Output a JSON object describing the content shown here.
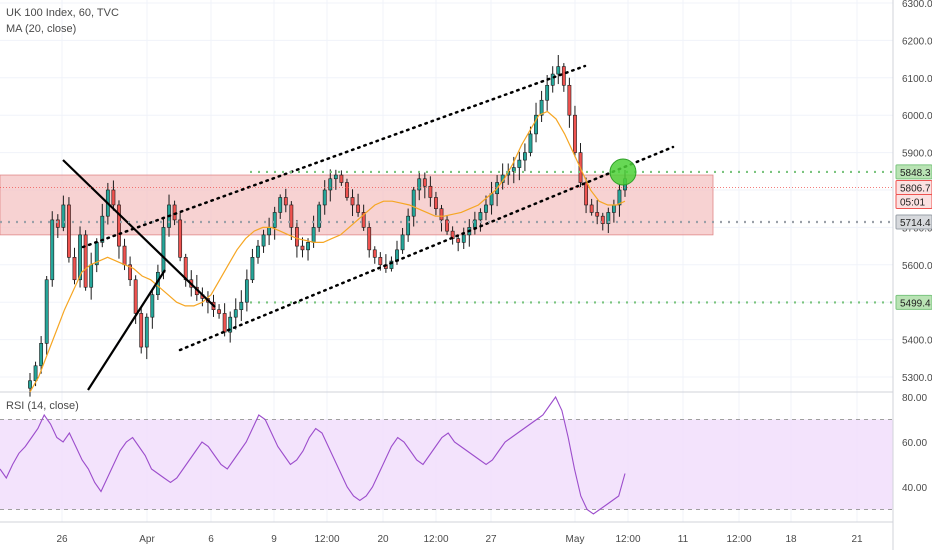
{
  "header": {
    "symbol": "UK 100 Index, 60, TVC",
    "ma_label": "MA (20, close)",
    "rsi_label": "RSI (14, close)"
  },
  "colors": {
    "bull": "#26a69a",
    "bear": "#ef5350",
    "candle_body": "#1a1a1a",
    "ma": "#f6a623",
    "rsi": "#9c4dcc",
    "rsi_band": "#f0dcfb",
    "zone": "#f4c3c3",
    "zone_border": "#e08888",
    "level_green": "#7bc47f",
    "target_circle": "#4cd137"
  },
  "chart_data": [
    {
      "type": "candlestick",
      "series": [
        {
          "name": "UK 100 Index"
        },
        {
          "name": "MA (20, close)"
        }
      ],
      "price_axis": {
        "ticks": [
          "6300.0",
          "6200.0",
          "6100.0",
          "6000.0",
          "5900.0",
          "5800.0",
          "5700.0",
          "5600.0",
          "5500.0",
          "5400.0",
          "5300.0"
        ],
        "range": [
          5280,
          6310
        ]
      },
      "time_axis": {
        "ticks": [
          "26",
          "Apr",
          "6",
          "9",
          "12:00",
          "20",
          "12:00",
          "27",
          "May",
          "12:00",
          "11",
          "12:00",
          "18",
          "21"
        ]
      },
      "levels": [
        {
          "label": "5848.3",
          "value": 5848.3,
          "style": "dotted-green"
        },
        {
          "label": "5806.7",
          "value": 5806.7,
          "style": "last-price"
        },
        {
          "label": "05:01",
          "value": 5786,
          "style": "countdown"
        },
        {
          "label": "5714.4",
          "value": 5714.4,
          "style": "dotted-gray"
        },
        {
          "label": "5499.4",
          "value": 5499.4,
          "style": "dotted-green"
        }
      ],
      "support_resistance_zone": [
        5680,
        5840
      ],
      "price_path": [
        5290,
        5330,
        5390,
        5560,
        5720,
        5700,
        5760,
        5620,
        5560,
        5680,
        5540,
        5600,
        5660,
        5730,
        5800,
        5760,
        5650,
        5600,
        5560,
        5470,
        5380,
        5460,
        5520,
        5580,
        5700,
        5760,
        5720,
        5620,
        5560,
        5540,
        5520,
        5510,
        5500,
        5480,
        5470,
        5420,
        5460,
        5480,
        5500,
        5560,
        5620,
        5650,
        5680,
        5700,
        5740,
        5780,
        5760,
        5700,
        5650,
        5640,
        5660,
        5700,
        5760,
        5800,
        5830,
        5840,
        5820,
        5780,
        5760,
        5740,
        5700,
        5640,
        5620,
        5600,
        5590,
        5610,
        5640,
        5680,
        5730,
        5800,
        5830,
        5810,
        5780,
        5750,
        5720,
        5690,
        5670,
        5660,
        5680,
        5700,
        5720,
        5740,
        5760,
        5790,
        5820,
        5840,
        5850,
        5860,
        5880,
        5900,
        5950,
        6000,
        6040,
        6080,
        6110,
        6130,
        6080,
        6000,
        5900,
        5820,
        5760,
        5740,
        5730,
        5710,
        5740,
        5760,
        5800,
        5830
      ],
      "ma_path": [
        5260,
        5300,
        5360,
        5420,
        5480,
        5530,
        5580,
        5600,
        5610,
        5620,
        5610,
        5600,
        5590,
        5570,
        5560,
        5540,
        5520,
        5500,
        5490,
        5490,
        5500,
        5520,
        5560,
        5600,
        5640,
        5670,
        5690,
        5700,
        5700,
        5690,
        5680,
        5670,
        5665,
        5660,
        5660,
        5670,
        5680,
        5700,
        5720,
        5740,
        5760,
        5770,
        5770,
        5765,
        5760,
        5750,
        5740,
        5730,
        5730,
        5735,
        5740,
        5750,
        5760,
        5780,
        5800,
        5830,
        5870,
        5920,
        5960,
        6000,
        6010,
        5990,
        5950,
        5900,
        5850,
        5800,
        5770,
        5760,
        5760,
        5770
      ],
      "annotations": [
        "descending trend line",
        "ascending trend line",
        "ascending channel",
        "target circle"
      ]
    },
    {
      "type": "line",
      "series": [
        {
          "name": "RSI (14, close)"
        }
      ],
      "rsi_axis": {
        "ticks": [
          "80.00",
          "60.00",
          "40.00"
        ],
        "range": [
          28,
          80
        ]
      },
      "overbought": 70,
      "oversold": 30,
      "values": [
        48,
        44,
        50,
        55,
        58,
        62,
        66,
        72,
        68,
        62,
        60,
        64,
        58,
        52,
        48,
        42,
        38,
        44,
        50,
        56,
        60,
        62,
        58,
        54,
        48,
        46,
        44,
        42,
        44,
        48,
        52,
        56,
        60,
        58,
        54,
        50,
        48,
        52,
        56,
        60,
        66,
        72,
        70,
        64,
        58,
        54,
        50,
        52,
        56,
        62,
        66,
        64,
        58,
        52,
        46,
        40,
        36,
        34,
        36,
        40,
        46,
        52,
        58,
        62,
        60,
        56,
        52,
        50,
        54,
        58,
        62,
        64,
        60,
        58,
        56,
        54,
        52,
        50,
        52,
        56,
        60,
        62,
        64,
        66,
        68,
        70,
        72,
        76,
        80,
        74,
        62,
        48,
        36,
        30,
        28,
        30,
        32,
        34,
        36,
        46
      ]
    }
  ]
}
